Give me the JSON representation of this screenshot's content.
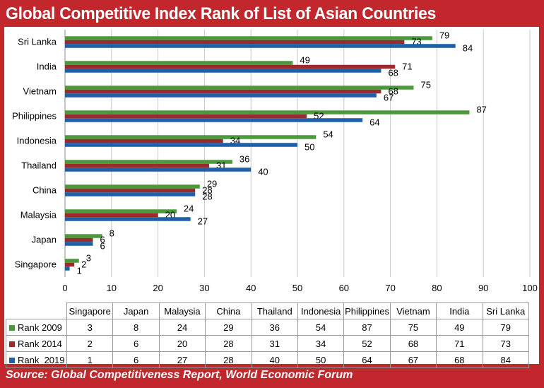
{
  "title": "Global Competitive Index Rank of List of Asian Countries",
  "source": "Source: Global Competitiveness Report, World Economic Forum",
  "colors": {
    "Rank 2009": "#4a9a3c",
    "Rank 2014": "#9b2a2d",
    "Rank 2019": "#1f5fa8",
    "frame": "#c1272d"
  },
  "chart_data": {
    "type": "bar",
    "orientation": "horizontal",
    "categories": [
      "Singapore",
      "Japan",
      "Malaysia",
      "China",
      "Thailand",
      "Indonesia",
      "Philippines",
      "Vietnam",
      "India",
      "Sri Lanka"
    ],
    "series": [
      {
        "name": "Rank 2009",
        "values": [
          3,
          8,
          24,
          29,
          36,
          54,
          87,
          75,
          49,
          79
        ]
      },
      {
        "name": "Rank 2014",
        "values": [
          2,
          6,
          20,
          28,
          31,
          34,
          52,
          68,
          71,
          73
        ]
      },
      {
        "name": "Rank  2019",
        "values": [
          1,
          6,
          27,
          28,
          40,
          50,
          64,
          67,
          68,
          84
        ]
      }
    ],
    "xlim": [
      0,
      100
    ],
    "xticks": [
      0,
      10,
      20,
      30,
      40,
      50,
      60,
      70,
      80,
      90,
      100
    ],
    "grid": true,
    "data_table": true
  }
}
